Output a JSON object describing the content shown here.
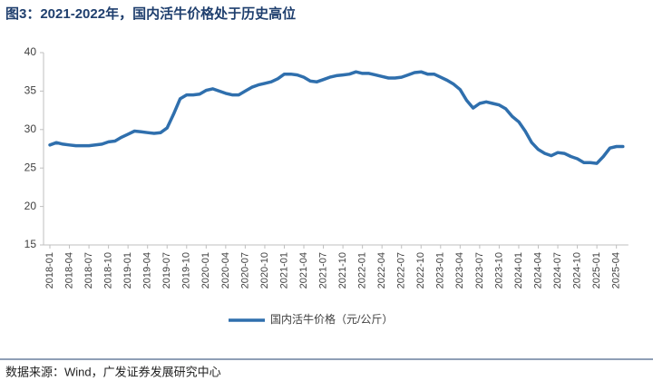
{
  "chart_data": {
    "type": "line",
    "title": "图3：2021-2022年，国内活牛价格处于历史高位",
    "source": "数据来源：Wind，广发证券发展研究中心",
    "categories": [
      "2018-01",
      null,
      null,
      "2018-04",
      null,
      null,
      "2018-07",
      null,
      null,
      "2018-10",
      null,
      null,
      "2019-01",
      null,
      null,
      "2019-04",
      null,
      null,
      "2019-07",
      null,
      null,
      "2019-10",
      null,
      null,
      "2020-01",
      null,
      null,
      "2020-04",
      null,
      null,
      "2020-07",
      null,
      null,
      "2020-10",
      null,
      null,
      "2021-01",
      null,
      null,
      "2021-04",
      null,
      null,
      "2021-07",
      null,
      null,
      "2021-10",
      null,
      null,
      "2022-01",
      null,
      null,
      "2022-04",
      null,
      null,
      "2022-07",
      null,
      null,
      "2022-10",
      null,
      null,
      "2023-01",
      null,
      null,
      "2023-04",
      null,
      null,
      "2023-07",
      null,
      null,
      "2023-10",
      null,
      null,
      "2024-01",
      null,
      null,
      "2024-04",
      null,
      null,
      "2024-07",
      null,
      null,
      "2024-10",
      null,
      null,
      "2025-01",
      null,
      null,
      "2025-04",
      null
    ],
    "series": [
      {
        "name": "国内活牛价格（元/公斤）",
        "color": "#2f6fad",
        "values": [
          28.0,
          28.3,
          28.1,
          28.0,
          27.9,
          27.9,
          27.9,
          28.0,
          28.1,
          28.4,
          28.5,
          29.0,
          29.4,
          29.8,
          29.7,
          29.6,
          29.5,
          29.6,
          30.2,
          32.0,
          34.0,
          34.5,
          34.5,
          34.6,
          35.1,
          35.3,
          35.0,
          34.7,
          34.5,
          34.5,
          35.0,
          35.5,
          35.8,
          36.0,
          36.2,
          36.6,
          37.2,
          37.2,
          37.1,
          36.8,
          36.3,
          36.2,
          36.5,
          36.8,
          37.0,
          37.1,
          37.2,
          37.5,
          37.3,
          37.3,
          37.1,
          36.9,
          36.7,
          36.7,
          36.8,
          37.1,
          37.4,
          37.5,
          37.2,
          37.2,
          36.8,
          36.4,
          35.9,
          35.2,
          33.8,
          32.8,
          33.4,
          33.6,
          33.4,
          33.2,
          32.7,
          31.7,
          31.0,
          29.8,
          28.3,
          27.4,
          26.9,
          26.6,
          27.0,
          26.9,
          26.5,
          26.2,
          25.7,
          25.7,
          25.6,
          26.5,
          27.6,
          27.8,
          27.8
        ]
      }
    ],
    "ylim": [
      15,
      40
    ],
    "yticks": [
      15,
      20,
      25,
      30,
      35,
      40
    ],
    "grid": false,
    "legend": "bottom"
  }
}
